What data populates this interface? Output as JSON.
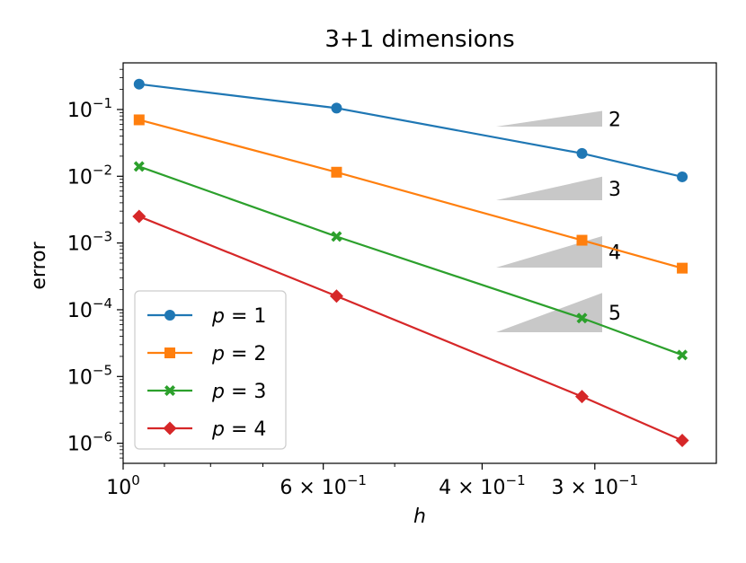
{
  "chart_data": {
    "type": "line",
    "title": "3+1 dimensions",
    "xlabel": "h",
    "ylabel": "error",
    "x_scale": "log-reversed",
    "y_scale": "log",
    "xlim": [
      1.0,
      0.22
    ],
    "ylim": [
      5e-07,
      0.5
    ],
    "x_ticks": [
      {
        "value": 1.0,
        "mant": "",
        "exp": "0",
        "base": "10"
      },
      {
        "value": 0.6,
        "mant": "6 × ",
        "exp": "−1",
        "base": "10"
      },
      {
        "value": 0.4,
        "mant": "4 × ",
        "exp": "−1",
        "base": "10"
      },
      {
        "value": 0.3,
        "mant": "3 × ",
        "exp": "−1",
        "base": "10"
      }
    ],
    "y_ticks": [
      {
        "value": 0.1,
        "exp": "−1",
        "base": "10"
      },
      {
        "value": 0.01,
        "exp": "−2",
        "base": "10"
      },
      {
        "value": 0.001,
        "exp": "−3",
        "base": "10"
      },
      {
        "value": 0.0001,
        "exp": "−4",
        "base": "10"
      },
      {
        "value": 1e-05,
        "exp": "−5",
        "base": "10"
      },
      {
        "value": 1e-06,
        "exp": "−6",
        "base": "10"
      }
    ],
    "x": [
      0.96,
      0.58,
      0.31,
      0.24
    ],
    "series": [
      {
        "name": "p = 1",
        "label_var": "p",
        "label_val": "1",
        "color": "#1f77b4",
        "marker": "circle",
        "values": [
          0.24,
          0.105,
          0.022,
          0.0098
        ]
      },
      {
        "name": "p = 2",
        "label_var": "p",
        "label_val": "2",
        "color": "#ff7f0e",
        "marker": "square",
        "values": [
          0.07,
          0.0115,
          0.0011,
          0.00042
        ]
      },
      {
        "name": "p = 3",
        "label_var": "p",
        "label_val": "3",
        "color": "#2ca02c",
        "marker": "x",
        "values": [
          0.014,
          0.00125,
          7.5e-05,
          2.1e-05
        ]
      },
      {
        "name": "p = 4",
        "label_var": "p",
        "label_val": "4",
        "color": "#d62728",
        "marker": "diamond",
        "values": [
          0.0025,
          0.00016,
          5e-06,
          1.1e-06
        ]
      }
    ],
    "slope_triangles": [
      {
        "label": "2",
        "slope": 2
      },
      {
        "label": "3",
        "slope": 3
      },
      {
        "label": "4",
        "slope": 4
      },
      {
        "label": "5",
        "slope": 5
      }
    ],
    "triangle_color": "#c8c8c8",
    "legend_position": "lower-left",
    "grid": false
  }
}
